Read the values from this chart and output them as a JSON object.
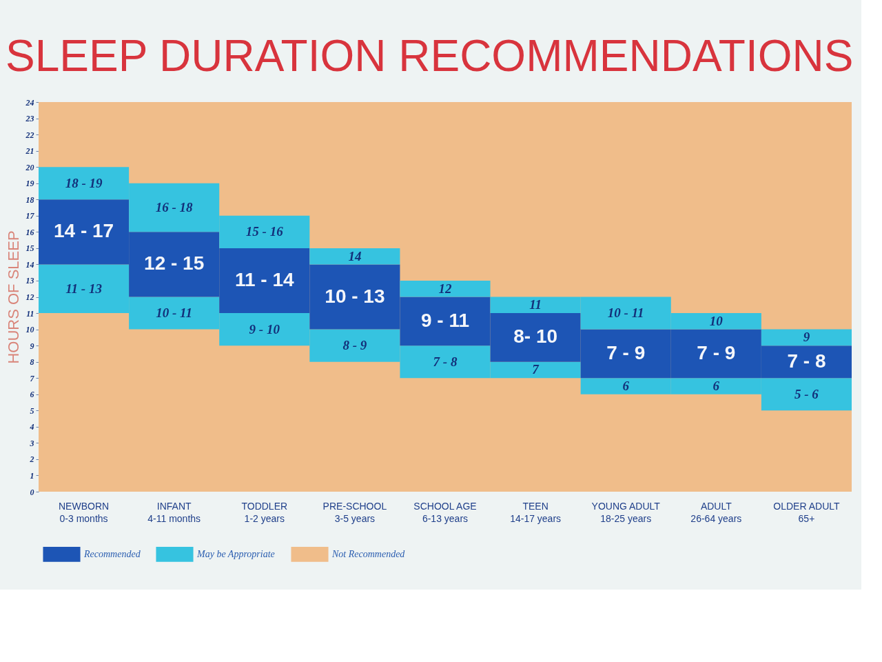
{
  "chart_data": {
    "type": "bar",
    "title": "SLEEP DURATION RECOMMENDATIONS",
    "ylabel": "HOURS OF SLEEP",
    "categories": [
      "NEWBORN\n0-3 months",
      "INFANT\n4-11 months",
      "TODDLER\n1-2 years",
      "PRE-SCHOOL\n3-5 years",
      "SCHOOL AGE\n6-13 years",
      "TEEN\n14-17 years",
      "YOUNG ADULT\n18-25 years",
      "ADULT\n26-64 years",
      "OLDER ADULT\n65+"
    ],
    "series": [
      {
        "name": "May be Appropriate",
        "color": "#36c3e0",
        "base": [
          11,
          10,
          9,
          8,
          7,
          7,
          6,
          6,
          5
        ],
        "values": [
          3,
          2,
          2,
          2,
          2,
          1,
          1,
          1,
          2
        ]
      },
      {
        "name": "Recommended",
        "color": "#1d55b5",
        "base": [
          14,
          12,
          11,
          10,
          9,
          8,
          7,
          7,
          7
        ],
        "values": [
          4,
          4,
          4,
          4,
          3,
          3,
          3,
          3,
          2
        ]
      },
      {
        "color": "#36c3e0",
        "base": [
          18,
          16,
          15,
          14,
          12,
          11,
          10,
          10,
          9
        ],
        "values": [
          2,
          3,
          2,
          1,
          1,
          1,
          2,
          1,
          1
        ]
      }
    ],
    "annotations": [
      {
        "text": "11 - 13",
        "x": "NEWBORN\n0-3 months",
        "y": 14
      },
      {
        "text": "14 - 17",
        "x": "NEWBORN\n0-3 months",
        "y": 18
      },
      {
        "text": "18 - 19",
        "x": "NEWBORN\n0-3 months",
        "y": 20
      },
      {
        "text": "10 - 11",
        "x": "INFANT\n4-11 months",
        "y": 12
      },
      {
        "text": "12 - 15",
        "x": "INFANT\n4-11 months",
        "y": 16
      },
      {
        "text": "16 - 18",
        "x": "INFANT\n4-11 months",
        "y": 19
      },
      {
        "text": "9 - 10",
        "x": "TODDLER\n1-2 years",
        "y": 11
      },
      {
        "text": "11 - 14",
        "x": "TODDLER\n1-2 years",
        "y": 15
      },
      {
        "text": "15 - 16",
        "x": "TODDLER\n1-2 years",
        "y": 17
      },
      {
        "text": "8 - 9",
        "x": "PRE-SCHOOL\n3-5 years",
        "y": 10
      },
      {
        "text": "10 - 13",
        "x": "PRE-SCHOOL\n3-5 years",
        "y": 14
      },
      {
        "text": "14",
        "x": "PRE-SCHOOL\n3-5 years",
        "y": 15
      },
      {
        "text": "7 - 8",
        "x": "SCHOOL AGE\n6-13 years",
        "y": 9
      },
      {
        "text": "9 - 11",
        "x": "SCHOOL AGE\n6-13 years",
        "y": 12
      },
      {
        "text": "12",
        "x": "SCHOOL AGE\n6-13 years",
        "y": 13
      },
      {
        "text": "7",
        "x": "TEEN\n14-17 years",
        "y": 8
      },
      {
        "text": "8- 10",
        "x": "TEEN\n14-17 years",
        "y": 11
      },
      {
        "text": "11",
        "x": "TEEN\n14-17 years",
        "y": 12
      },
      {
        "text": "6",
        "x": "YOUNG ADULT\n18-25 years",
        "y": 7
      },
      {
        "text": "7 - 9",
        "x": "YOUNG ADULT\n18-25 years",
        "y": 10
      },
      {
        "text": "10 - 11",
        "x": "YOUNG ADULT\n18-25 years",
        "y": 12
      },
      {
        "text": "6",
        "x": "ADULT\n26-64 years",
        "y": 7
      },
      {
        "text": "7 - 9",
        "x": "ADULT\n26-64 years",
        "y": 10
      },
      {
        "text": "10",
        "x": "ADULT\n26-64 years",
        "y": 11
      },
      {
        "text": "5 - 6",
        "x": "OLDER ADULT\n65+",
        "y": 7
      },
      {
        "text": "7 - 8",
        "x": "OLDER ADULT\n65+",
        "y": 9
      },
      {
        "text": "9",
        "x": "OLDER ADULT\n65+",
        "y": 10
      }
    ],
    "bands": [
      {
        "axis": "y",
        "from": 0,
        "to": 24,
        "label": "Not Recommended",
        "color": "#f0bd8a"
      }
    ],
    "ylim": [
      0,
      24
    ],
    "yticks": [
      0,
      1,
      2,
      3,
      4,
      5,
      6,
      7,
      8,
      9,
      10,
      11,
      12,
      13,
      14,
      15,
      16,
      17,
      18,
      19,
      20,
      21,
      22,
      23,
      24
    ],
    "legend": "bottom left"
  }
}
